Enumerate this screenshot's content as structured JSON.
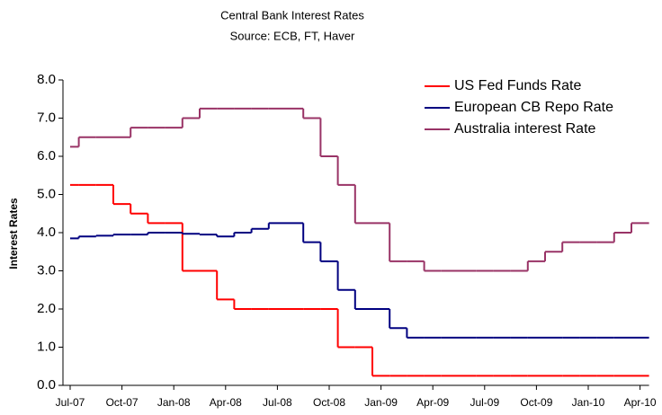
{
  "chart_data": {
    "type": "line",
    "title": "Central Bank Interest Rates",
    "subtitle": "Source: ECB, FT, Haver",
    "y_label": "Interest Rates",
    "categories": [
      "Jul-07",
      null,
      null,
      "Oct-07",
      null,
      null,
      "Jan-08",
      null,
      null,
      "Apr-08",
      null,
      null,
      "Jul-08",
      null,
      null,
      "Oct-08",
      null,
      null,
      "Jan-09",
      null,
      null,
      "Apr-09",
      null,
      null,
      "Jul-09",
      null,
      null,
      "Oct-09",
      null,
      null,
      "Jan-10",
      null,
      null,
      "Apr-10"
    ],
    "series": [
      {
        "name": "US Fed Funds Rate",
        "color": "#ff0000",
        "values": [
          5.25,
          5.25,
          5.25,
          4.75,
          4.5,
          4.25,
          4.25,
          3.0,
          3.0,
          2.25,
          2.0,
          2.0,
          2.0,
          2.0,
          2.0,
          2.0,
          1.0,
          1.0,
          0.25,
          0.25,
          0.25,
          0.25,
          0.25,
          0.25,
          0.25,
          0.25,
          0.25,
          0.25,
          0.25,
          0.25,
          0.25,
          0.25,
          0.25,
          0.25
        ]
      },
      {
        "name": "European CB Repo Rate",
        "color": "#000080",
        "values": [
          3.85,
          3.9,
          3.92,
          3.95,
          3.95,
          4.0,
          4.0,
          3.97,
          3.95,
          3.9,
          4.0,
          4.1,
          4.25,
          4.25,
          3.75,
          3.25,
          2.5,
          2.0,
          2.0,
          1.5,
          1.25,
          1.25,
          1.25,
          1.25,
          1.25,
          1.25,
          1.25,
          1.25,
          1.25,
          1.25,
          1.25,
          1.25,
          1.25,
          1.25
        ]
      },
      {
        "name": "Australia interest Rate",
        "color": "#993366",
        "values": [
          6.25,
          6.5,
          6.5,
          6.5,
          6.75,
          6.75,
          6.75,
          7.0,
          7.25,
          7.25,
          7.25,
          7.25,
          7.25,
          7.25,
          7.0,
          6.0,
          5.25,
          4.25,
          4.25,
          3.25,
          3.25,
          3.0,
          3.0,
          3.0,
          3.0,
          3.0,
          3.0,
          3.25,
          3.5,
          3.75,
          3.75,
          3.75,
          4.0,
          4.25
        ]
      }
    ],
    "ylim": [
      0,
      8
    ],
    "yticks": [
      {
        "value": 0,
        "label": "0.0"
      },
      {
        "value": 1,
        "label": "1.0"
      },
      {
        "value": 2,
        "label": "2.0"
      },
      {
        "value": 3,
        "label": "3.0"
      },
      {
        "value": 4,
        "label": "4.0"
      },
      {
        "value": 5,
        "label": "5.0"
      },
      {
        "value": 6,
        "label": "6.0"
      },
      {
        "value": 7,
        "label": "7.0"
      },
      {
        "value": 8,
        "label": "8.0"
      }
    ],
    "grid": false
  }
}
